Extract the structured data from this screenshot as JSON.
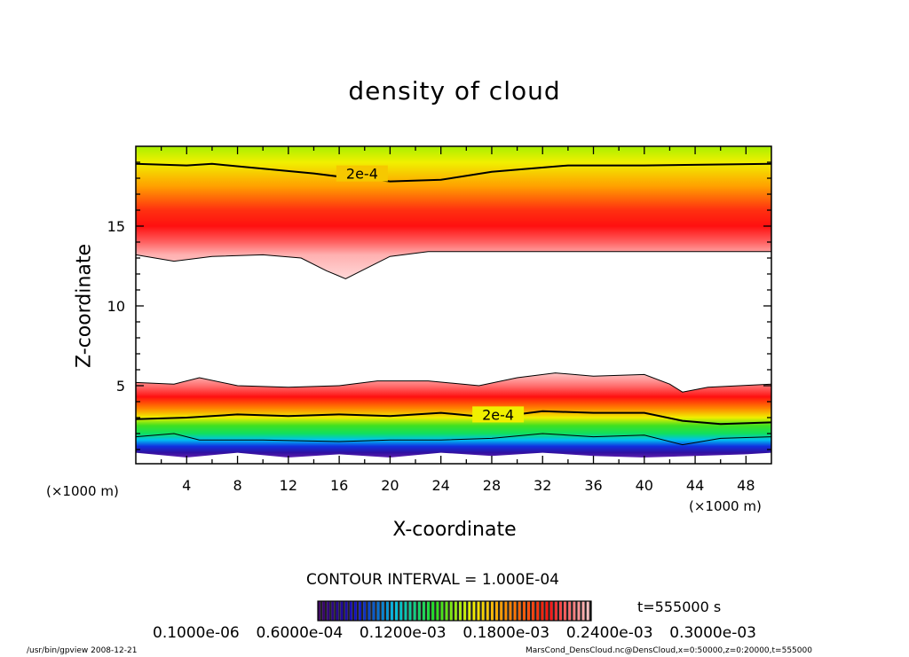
{
  "chart_data": {
    "type": "heatmap",
    "subtype": "filled contour",
    "title": "density of cloud",
    "xlabel": "X-coordinate",
    "ylabel": "Z-coordinate",
    "x_unit": "(×1000 m)",
    "y_unit": "(×1000 m)",
    "xlim": [
      0,
      50
    ],
    "ylim": [
      0,
      20
    ],
    "xticks": [
      4,
      8,
      12,
      16,
      20,
      24,
      28,
      32,
      36,
      40,
      44,
      48
    ],
    "yticks": [
      5,
      10,
      15
    ],
    "contour_interval_label": "CONTOUR INTERVAL = 1.000E-04",
    "contour_label": "2e-4",
    "time_label": "t=555000 s",
    "colorbar_labels": [
      "0.1000e-06",
      "0.6000e-04",
      "0.1200e-03",
      "0.1800e-03",
      "0.2400e-03",
      "0.3000e-03"
    ],
    "colorbar_colors": [
      "#3a0060",
      "#1010c0",
      "#00c0e0",
      "#20e020",
      "#f0f000",
      "#ff8000",
      "#ff1010",
      "#ffc0c0"
    ],
    "upper_cloud": {
      "lower_edge": [
        [
          0,
          13.2
        ],
        [
          3,
          12.8
        ],
        [
          6,
          13.1
        ],
        [
          10,
          13.2
        ],
        [
          13,
          13.0
        ],
        [
          15,
          12.2
        ],
        [
          16.5,
          11.7
        ],
        [
          18,
          12.3
        ],
        [
          20,
          13.1
        ],
        [
          23,
          13.4
        ],
        [
          30,
          13.4
        ],
        [
          40,
          13.4
        ],
        [
          50,
          13.4
        ]
      ],
      "contour_2e-4": [
        [
          0,
          18.9
        ],
        [
          4,
          18.8
        ],
        [
          6,
          18.9
        ],
        [
          10,
          18.6
        ],
        [
          14,
          18.3
        ],
        [
          16,
          18.1
        ],
        [
          18,
          18.0
        ],
        [
          20,
          17.8
        ],
        [
          24,
          17.9
        ],
        [
          28,
          18.4
        ],
        [
          34,
          18.8
        ],
        [
          40,
          18.8
        ],
        [
          50,
          18.9
        ]
      ],
      "peak_z": 15
    },
    "lower_cloud": {
      "top_edge": [
        [
          0,
          5.2
        ],
        [
          3,
          5.1
        ],
        [
          5,
          5.5
        ],
        [
          8,
          5.0
        ],
        [
          12,
          4.9
        ],
        [
          16,
          5.0
        ],
        [
          19,
          5.3
        ],
        [
          23,
          5.3
        ],
        [
          27,
          5.0
        ],
        [
          30,
          5.5
        ],
        [
          33,
          5.8
        ],
        [
          36,
          5.6
        ],
        [
          40,
          5.7
        ],
        [
          42,
          5.1
        ],
        [
          43,
          4.6
        ],
        [
          45,
          4.9
        ],
        [
          50,
          5.1
        ]
      ],
      "contour_2e-4": [
        [
          0,
          2.9
        ],
        [
          4,
          3.0
        ],
        [
          8,
          3.2
        ],
        [
          12,
          3.1
        ],
        [
          16,
          3.2
        ],
        [
          20,
          3.1
        ],
        [
          24,
          3.3
        ],
        [
          28,
          3.0
        ],
        [
          32,
          3.4
        ],
        [
          36,
          3.3
        ],
        [
          40,
          3.3
        ],
        [
          43,
          2.8
        ],
        [
          46,
          2.6
        ],
        [
          50,
          2.7
        ]
      ],
      "contour_1e-4": [
        [
          0,
          1.8
        ],
        [
          3,
          2.0
        ],
        [
          5,
          1.6
        ],
        [
          10,
          1.6
        ],
        [
          16,
          1.5
        ],
        [
          20,
          1.6
        ],
        [
          24,
          1.6
        ],
        [
          28,
          1.7
        ],
        [
          32,
          2.0
        ],
        [
          36,
          1.8
        ],
        [
          40,
          1.9
        ],
        [
          43,
          1.3
        ],
        [
          46,
          1.7
        ],
        [
          50,
          1.8
        ]
      ],
      "bottom_edge": [
        [
          0,
          0.8
        ],
        [
          4,
          0.5
        ],
        [
          8,
          0.8
        ],
        [
          12,
          0.5
        ],
        [
          16,
          0.7
        ],
        [
          20,
          0.5
        ],
        [
          24,
          0.8
        ],
        [
          28,
          0.6
        ],
        [
          32,
          0.8
        ],
        [
          36,
          0.6
        ],
        [
          40,
          0.5
        ],
        [
          44,
          0.6
        ],
        [
          48,
          0.7
        ],
        [
          50,
          0.8
        ]
      ],
      "peak_z": 4.3
    }
  },
  "footer": {
    "left": "/usr/bin/gpview   2008-12-21",
    "right": "MarsCond_DensCloud.nc@DensCloud,x=0:50000,z=0:20000,t=555000"
  }
}
